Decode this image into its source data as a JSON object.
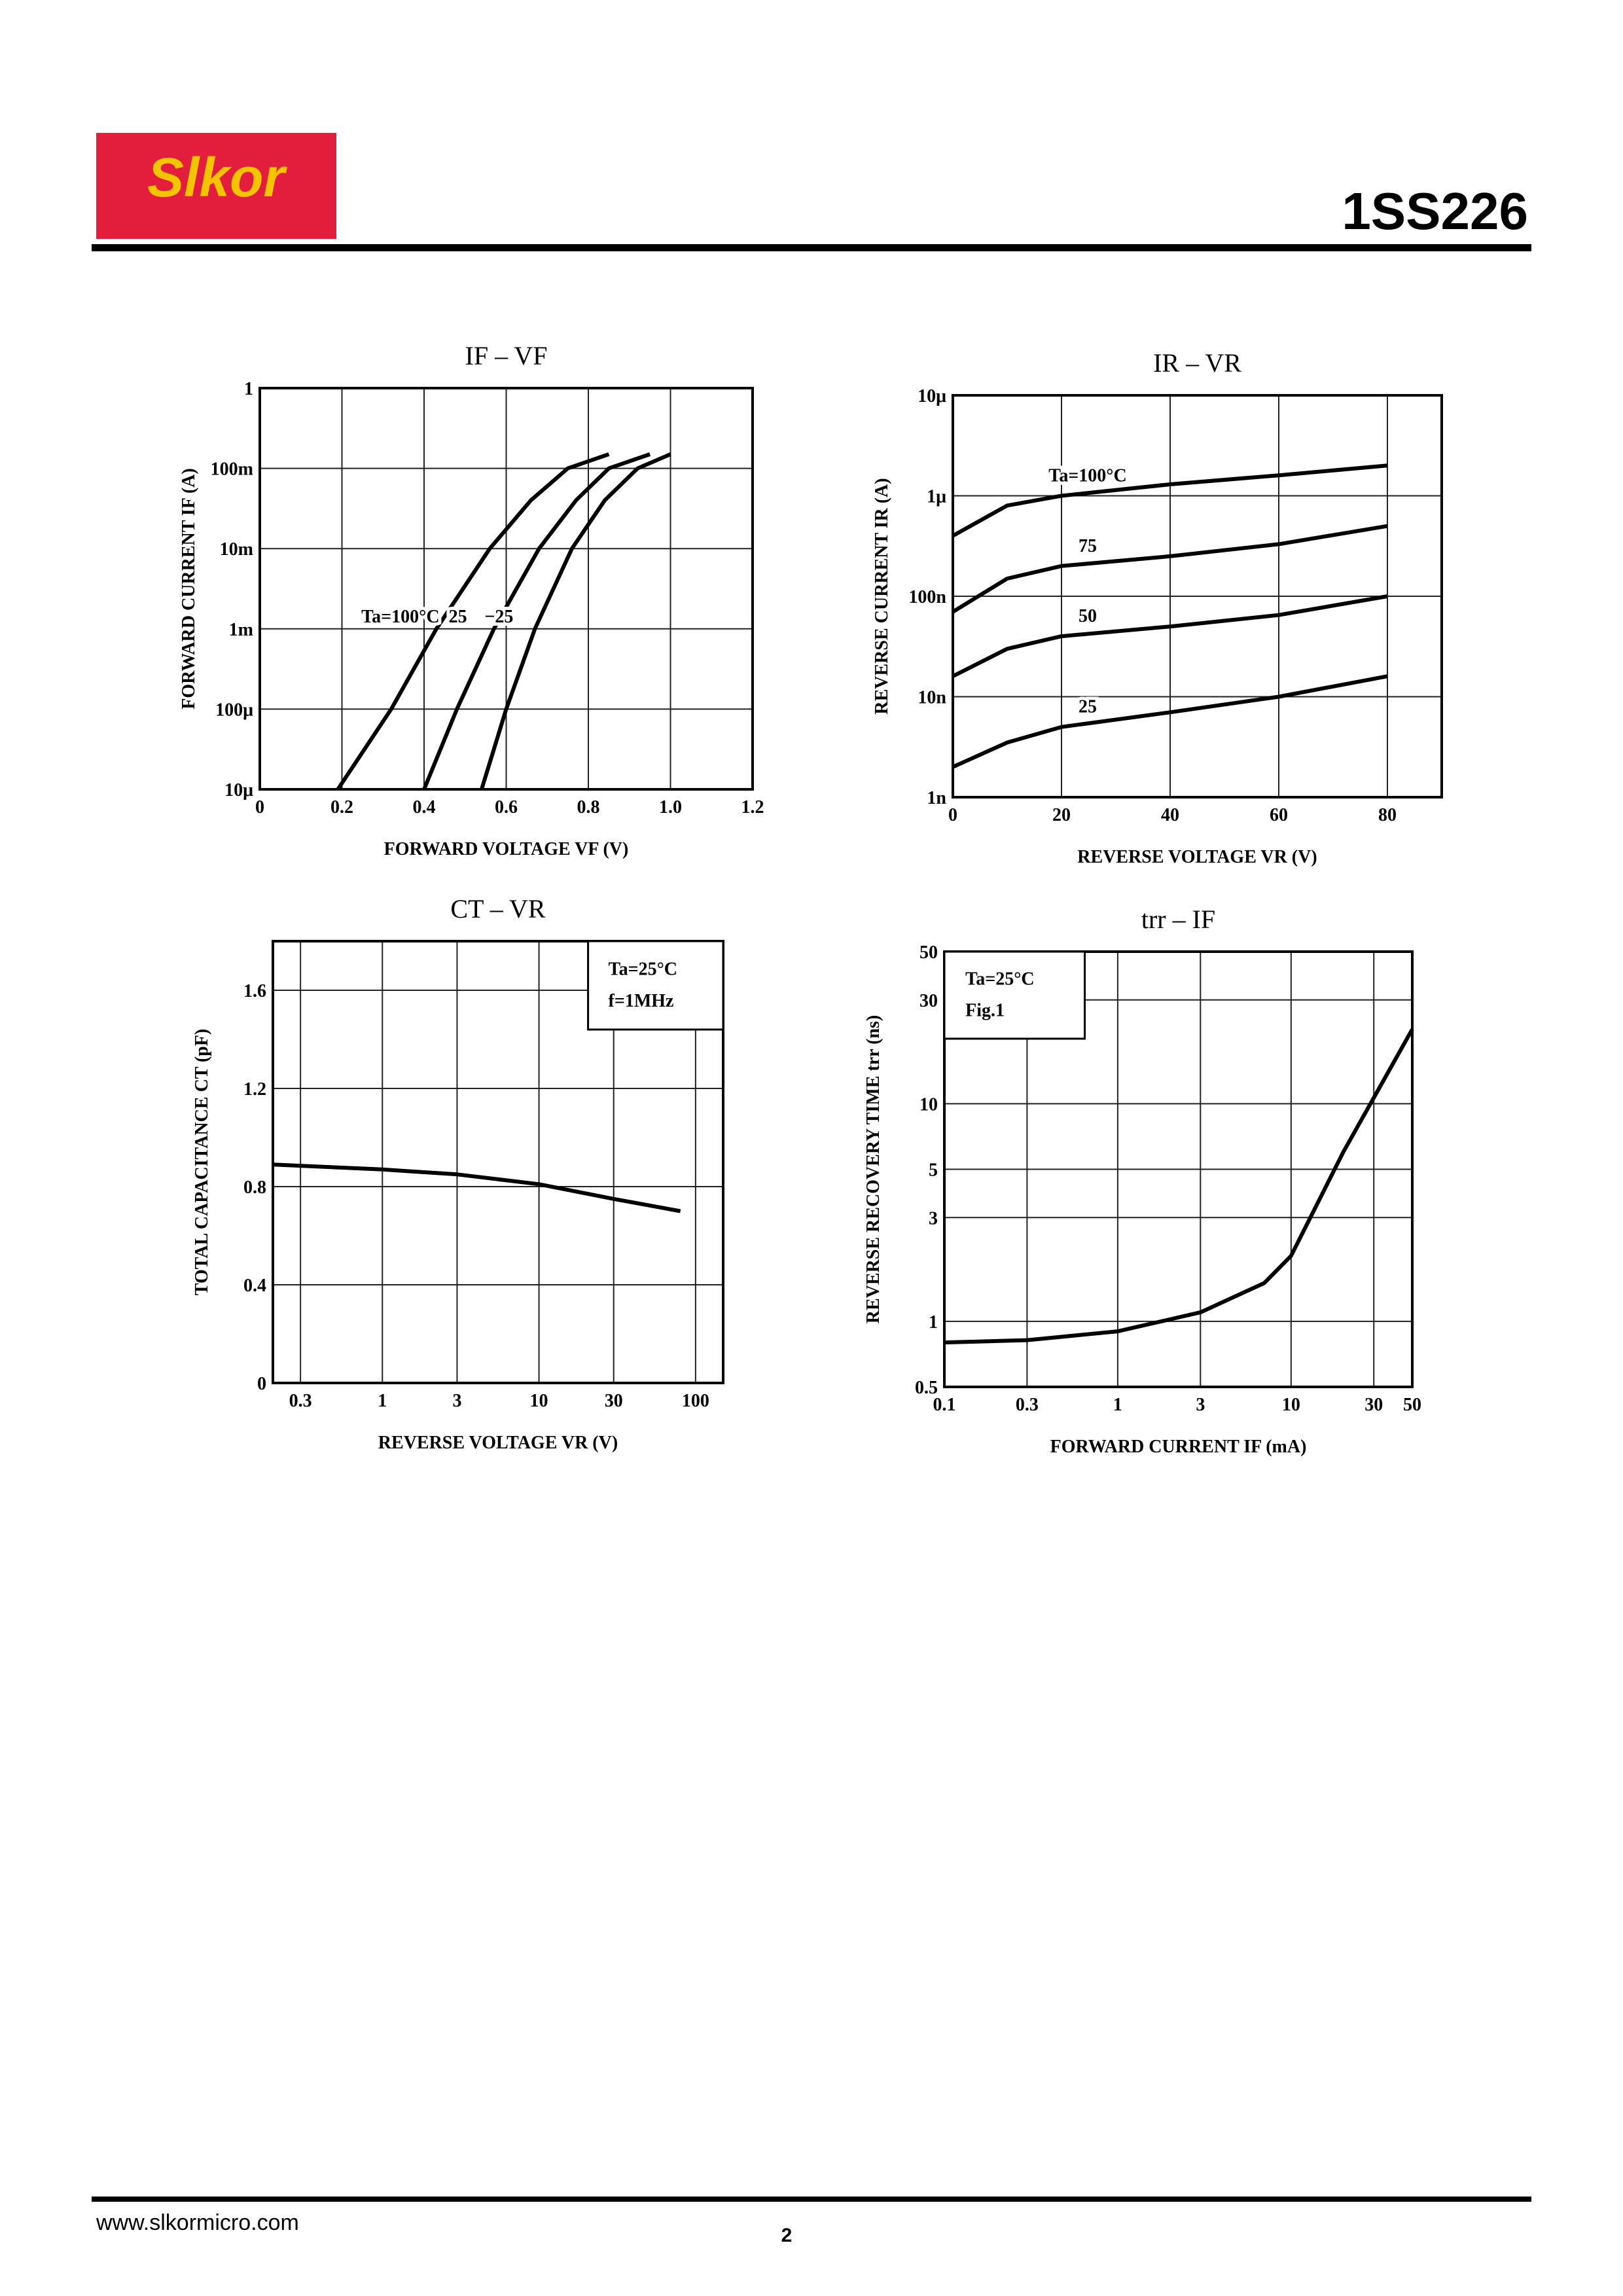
{
  "header": {
    "logo": "Slkor",
    "part_number": "1SS226"
  },
  "footer": {
    "website": "www.slkormicro.com",
    "page": "2"
  },
  "chart_data": [
    {
      "type": "line",
      "title": "IF – VF",
      "x_label": "FORWARD VOLTAGE VF (V)",
      "y_label": "FORWARD CURRENT IF (A)",
      "xlim": [
        0,
        1.2
      ],
      "xticks": [
        0,
        0.2,
        0.4,
        0.6,
        0.8,
        {
          "value": 1,
          "label": "1.0"
        },
        1.2
      ],
      "ylim": [
        1e-05,
        1
      ],
      "ylog": true,
      "yticks": [
        {
          "value": 1e-05,
          "label": "10μ"
        },
        {
          "value": 0.0001,
          "label": "100μ"
        },
        {
          "value": 0.001,
          "label": "1m"
        },
        {
          "value": 0.01,
          "label": "10m"
        },
        {
          "value": 0.1,
          "label": "100m"
        },
        1
      ],
      "grid": true,
      "series": [
        {
          "name": "Ta=100°C",
          "color": "#000000",
          "x": [
            0.19,
            0.32,
            0.43,
            0.56,
            0.66,
            0.75,
            0.85
          ],
          "values": [
            1e-05,
            0.0001,
            0.001,
            0.01,
            0.04,
            0.1,
            0.15
          ]
        },
        {
          "name": "25",
          "color": "#000000",
          "x": [
            0.4,
            0.48,
            0.57,
            0.68,
            0.77,
            0.85,
            0.95
          ],
          "values": [
            1e-05,
            0.0001,
            0.001,
            0.01,
            0.04,
            0.1,
            0.15
          ]
        },
        {
          "name": "−25",
          "color": "#000000",
          "x": [
            0.54,
            0.6,
            0.67,
            0.76,
            0.84,
            0.92,
            1.0
          ],
          "values": [
            1e-05,
            0.0001,
            0.001,
            0.01,
            0.04,
            0.1,
            0.15
          ]
        }
      ]
    },
    {
      "type": "line",
      "title": "IR – VR",
      "x_label": "REVERSE VOLTAGE VR (V)",
      "y_label": "REVERSE CURRENT IR (A)",
      "xlim": [
        0,
        90
      ],
      "xticks": [
        0,
        20,
        40,
        60,
        80
      ],
      "ylim": [
        1e-09,
        1e-05
      ],
      "ylog": true,
      "yticks": [
        {
          "value": 1e-09,
          "label": "1n"
        },
        {
          "value": 1e-08,
          "label": "10n"
        },
        {
          "value": 1e-07,
          "label": "100n"
        },
        {
          "value": 1e-06,
          "label": "1μ"
        },
        {
          "value": 1e-05,
          "label": "10μ"
        }
      ],
      "grid": true,
      "series": [
        {
          "name": "Ta=100°C",
          "color": "#000000",
          "x": [
            0,
            10,
            20,
            40,
            60,
            80
          ],
          "values": [
            4e-07,
            8e-07,
            1e-06,
            1.3e-06,
            1.6e-06,
            2e-06
          ]
        },
        {
          "name": "75",
          "color": "#000000",
          "x": [
            0,
            10,
            20,
            40,
            60,
            80
          ],
          "values": [
            7e-08,
            1.5e-07,
            2e-07,
            2.5e-07,
            3.3e-07,
            5e-07
          ]
        },
        {
          "name": "50",
          "color": "#000000",
          "x": [
            0,
            10,
            20,
            40,
            60,
            80
          ],
          "values": [
            1.6e-08,
            3e-08,
            4e-08,
            5e-08,
            6.5e-08,
            1e-07
          ]
        },
        {
          "name": "25",
          "color": "#000000",
          "x": [
            0,
            10,
            20,
            40,
            60,
            80
          ],
          "values": [
            2e-09,
            3.5e-09,
            5e-09,
            7e-09,
            1e-08,
            1.6e-08
          ]
        }
      ]
    },
    {
      "type": "line",
      "title": "CT – VR",
      "x_label": "REVERSE VOLTAGE VR (V)",
      "y_label": "TOTAL CAPACITANCE CT (pF)",
      "xlim": [
        0.2,
        150
      ],
      "xlog": true,
      "xticks": [
        0.3,
        1,
        3,
        10,
        30,
        100
      ],
      "ylim": [
        0,
        1.8
      ],
      "yticks": [
        0,
        0.4,
        0.8,
        1.2,
        1.6
      ],
      "grid": true,
      "annotations": [
        "Ta=25°C",
        "f=1MHz"
      ],
      "annotation_corner": "top-right",
      "series": [
        {
          "color": "#000000",
          "x": [
            0.2,
            1,
            3,
            10,
            30,
            80
          ],
          "values": [
            0.89,
            0.87,
            0.85,
            0.81,
            0.75,
            0.7
          ]
        }
      ]
    },
    {
      "type": "line",
      "title": "trr – IF",
      "x_label": "FORWARD CURRENT IF (mA)",
      "y_label": "REVERSE RECOVERY TIME trr (ns)",
      "xlim": [
        0.1,
        50
      ],
      "xlog": true,
      "xticks": [
        0.1,
        0.3,
        1,
        3,
        10,
        30,
        50
      ],
      "ylim": [
        0.5,
        50
      ],
      "ylog": true,
      "yticks": [
        0.5,
        1,
        3,
        5,
        10,
        30,
        50
      ],
      "grid": true,
      "annotations": [
        "Ta=25°C",
        "Fig.1"
      ],
      "annotation_corner": "top-left",
      "series": [
        {
          "color": "#000000",
          "x": [
            0.1,
            0.3,
            1,
            3,
            7,
            10,
            20,
            50
          ],
          "values": [
            0.8,
            0.82,
            0.9,
            1.1,
            1.5,
            2,
            6,
            22
          ]
        }
      ]
    }
  ]
}
